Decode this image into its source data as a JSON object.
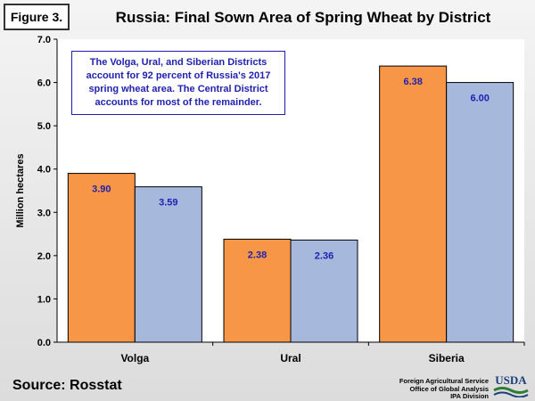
{
  "figure_label": "Figure 3.",
  "note": "The Volga, Ural, and Siberian Districts account for 92 percent of Russia's 2017 spring wheat area.  The Central District accounts for most of the remainder.",
  "source": "Source: Rosstat",
  "agency": [
    "Foreign Agricultural Service",
    "Office of Global Analysis",
    "IPA Division"
  ],
  "logo_text": "USDA",
  "colors": {
    "series1": "#f79646",
    "series2": "#a6b8dc",
    "label": "#1f1fb0"
  },
  "chart_data": {
    "type": "bar",
    "title": "Russia: Final Sown Area of Spring Wheat by District",
    "xlabel": "",
    "ylabel": "Million hectares",
    "categories": [
      "Volga",
      "Ural",
      "Siberia"
    ],
    "series": [
      {
        "values": [
          3.9,
          2.38,
          6.38
        ],
        "labels": [
          "3.90",
          "2.38",
          "6.38"
        ]
      },
      {
        "values": [
          3.59,
          2.36,
          6.0
        ],
        "labels": [
          "3.59",
          "2.36",
          "6.00"
        ]
      }
    ],
    "ylim": [
      0,
      7
    ],
    "yticks": [
      "0.0",
      "1.0",
      "2.0",
      "3.0",
      "4.0",
      "5.0",
      "6.0",
      "7.0"
    ],
    "grid": false,
    "legend": "none"
  }
}
